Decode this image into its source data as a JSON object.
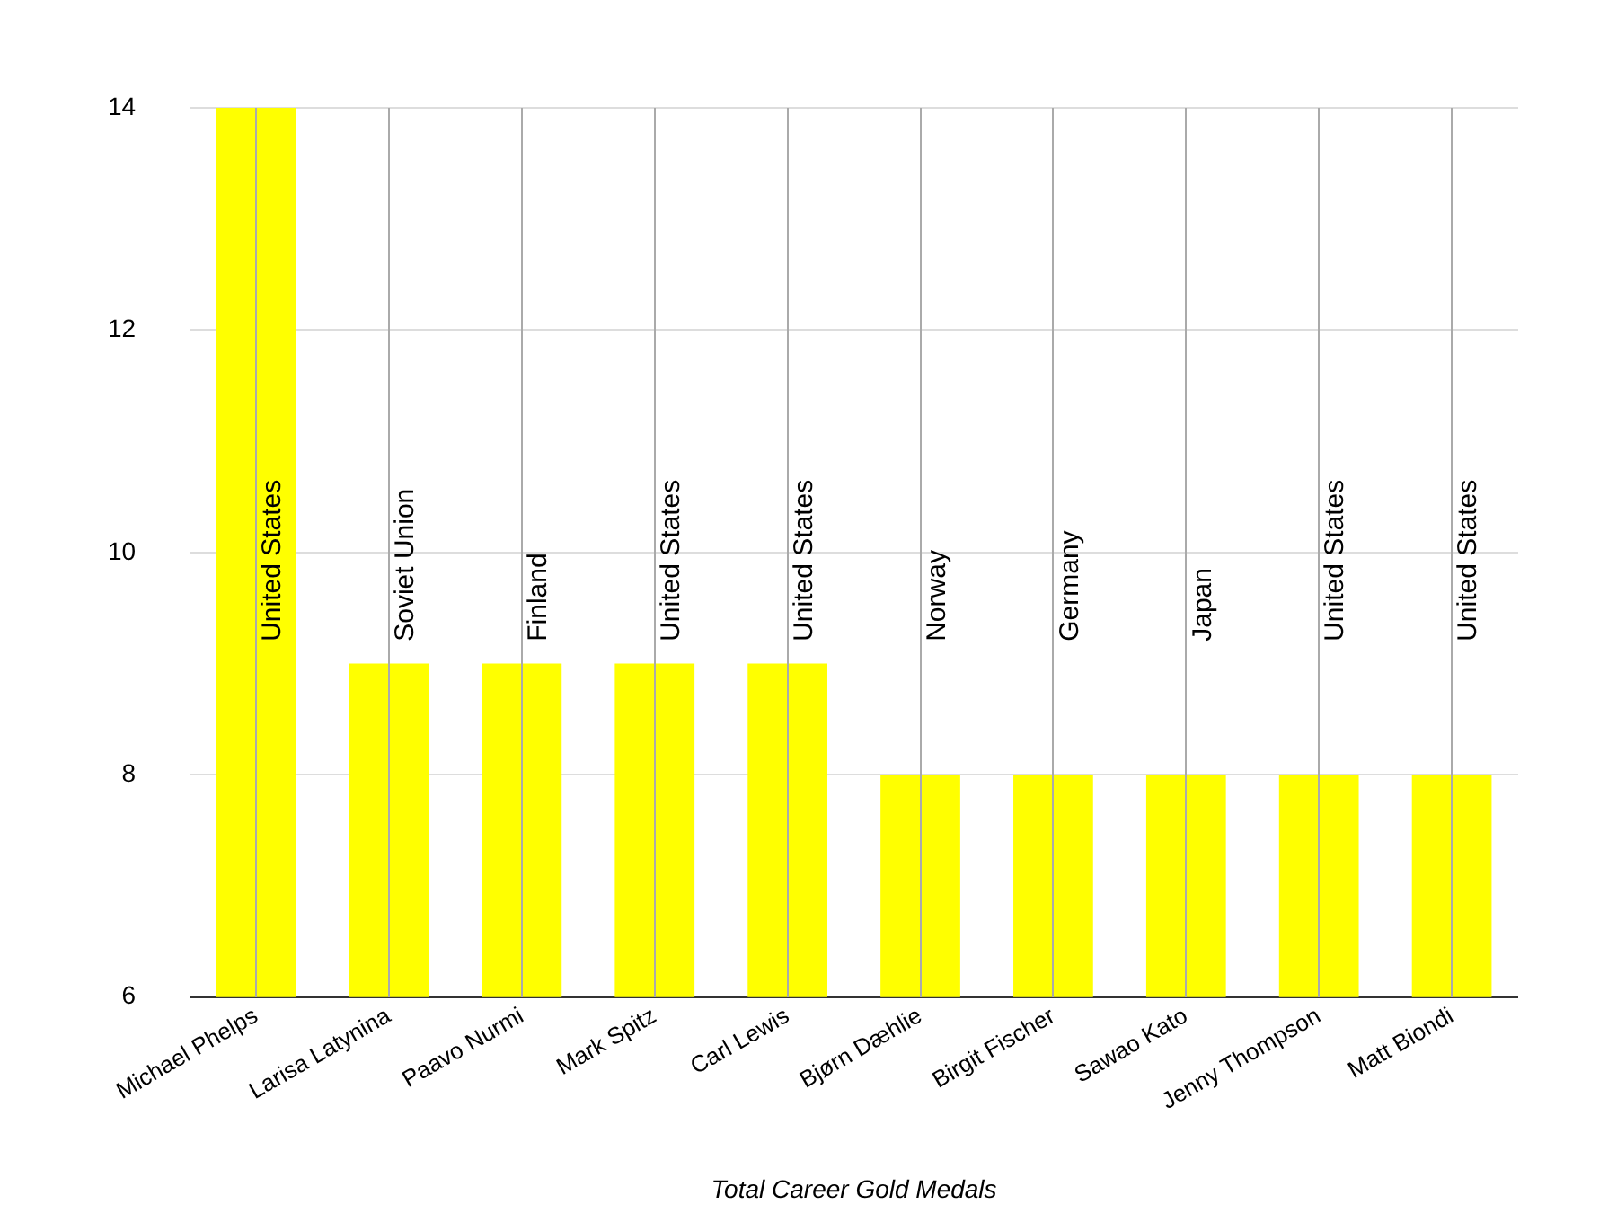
{
  "chart_data": {
    "type": "bar",
    "xlabel": "Total Career Gold Medals",
    "categories": [
      "Michael Phelps",
      "Larisa Latynina",
      "Paavo Nurmi",
      "Mark Spitz",
      "Carl Lewis",
      "Bjørn Dæhlie",
      "Birgit Fischer",
      "Sawao Kato",
      "Jenny Thompson",
      "Matt Biondi"
    ],
    "values": [
      14,
      9,
      9,
      9,
      9,
      8,
      8,
      8,
      8,
      8
    ],
    "color": "#ffff00",
    "ylim": [
      6,
      14
    ],
    "yticks": [
      6,
      8,
      10,
      12,
      14
    ],
    "grid": true,
    "legend": false,
    "annotations": [
      "United States",
      "Soviet Union",
      "Finland",
      "United States",
      "United States",
      "Norway",
      "Germany",
      "Japan",
      "United States",
      "United States"
    ]
  }
}
